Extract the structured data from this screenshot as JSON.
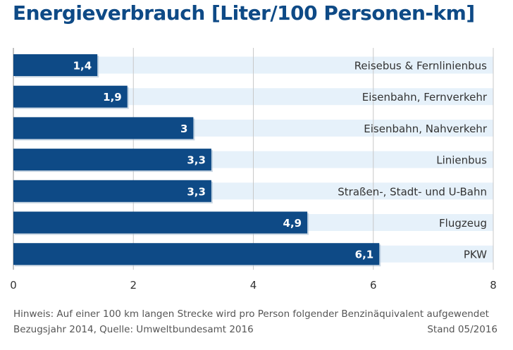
{
  "title": "Energieverbrauch [Liter/100 Personen-km]",
  "note": "Hinweis: Auf einer 100 km langen Strecke wird pro Person folgender Benzinäquivalent aufgewendet",
  "source": "Bezugsjahr 2014, Quelle: Umweltbundesamt 2016",
  "stand": "Stand 05/2016",
  "colors": {
    "bar": "#0e4a86",
    "band": "#e6f1fa",
    "title": "#0e4a86"
  },
  "chart_data": {
    "type": "bar",
    "orientation": "horizontal",
    "title": "Energieverbrauch [Liter/100 Personen-km]",
    "categories": [
      "Reisebus & Fernlinienbus",
      "Eisenbahn, Fernverkehr",
      "Eisenbahn, Nahverkehr",
      "Linienbus",
      "Straßen-, Stadt- und U-Bahn",
      "Flugzeug",
      "PKW"
    ],
    "values": [
      1.4,
      1.9,
      3,
      3.3,
      3.3,
      4.9,
      6.1
    ],
    "value_labels": [
      "1,4",
      "1,9",
      "3",
      "3,3",
      "3,3",
      "4,9",
      "6,1"
    ],
    "xlim": [
      0,
      8
    ],
    "xticks": [
      0,
      2,
      4,
      6,
      8
    ],
    "grid": true,
    "xlabel": "",
    "ylabel": ""
  }
}
